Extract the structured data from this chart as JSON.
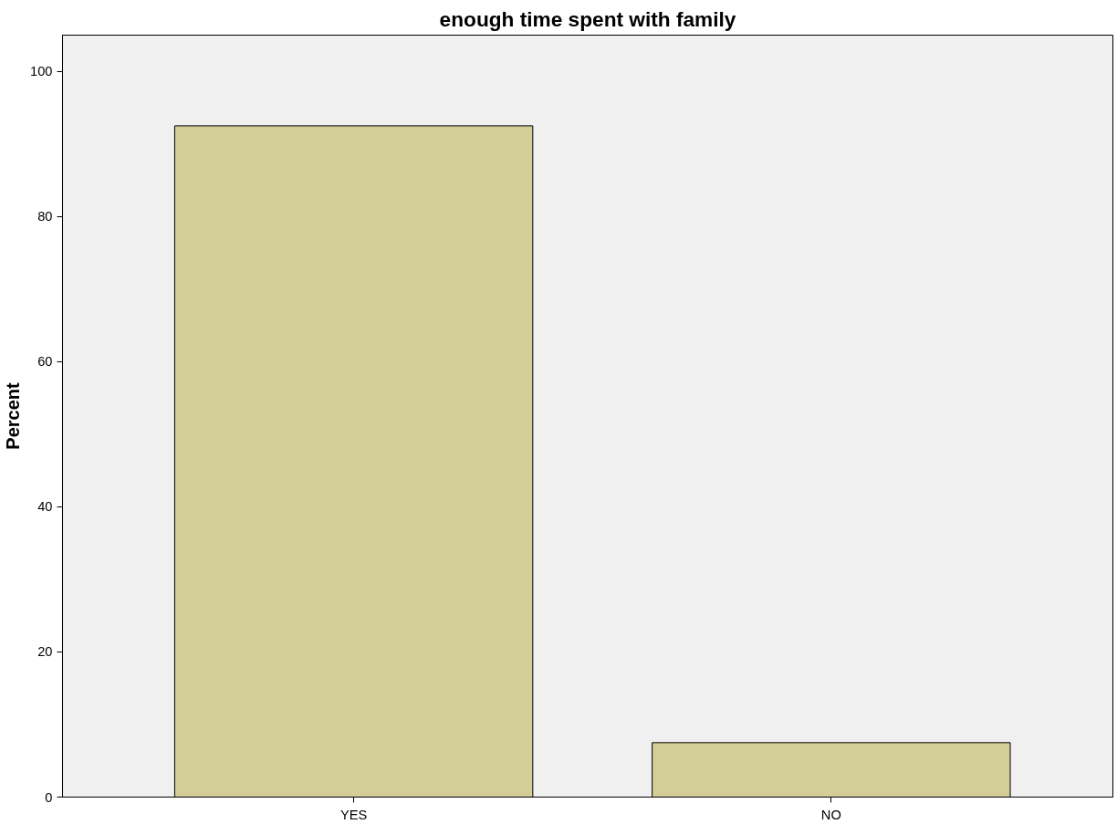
{
  "chart_data": {
    "type": "bar",
    "title": "enough time spent with family",
    "ylabel": "Percent",
    "categories": [
      "YES",
      "NO"
    ],
    "values": [
      92.5,
      7.5
    ],
    "color": "#d3cd98",
    "ylim": [
      0,
      105
    ],
    "yticks": [
      0,
      20,
      40,
      60,
      80,
      100
    ],
    "grid": false
  }
}
